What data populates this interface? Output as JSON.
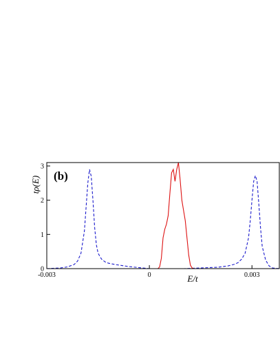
{
  "chart_data": {
    "type": "line",
    "panel_label": "(b)",
    "xlabel": "E/t",
    "ylabel": "tρ(E)",
    "xlim": [
      -0.003,
      0.0038
    ],
    "ylim": [
      0,
      3.1
    ],
    "x_ticks": [
      {
        "value": -0.003,
        "label": "-0.003"
      },
      {
        "value": 0,
        "label": "0"
      },
      {
        "value": 0.003,
        "label": "0.003"
      }
    ],
    "y_ticks": [
      {
        "value": 0,
        "label": "0"
      },
      {
        "value": 1,
        "label": "1"
      },
      {
        "value": 2,
        "label": "2"
      },
      {
        "value": 3,
        "label": "3"
      }
    ],
    "grid": false,
    "legend": "none",
    "series": [
      {
        "style": "dashed",
        "color": "#1a1acc",
        "points": [
          [
            -0.003,
            0.0
          ],
          [
            -0.0026,
            0.02
          ],
          [
            -0.0024,
            0.05
          ],
          [
            -0.0022,
            0.12
          ],
          [
            -0.0021,
            0.22
          ],
          [
            -0.002,
            0.45
          ],
          [
            -0.0019,
            1.1
          ],
          [
            -0.00185,
            1.8
          ],
          [
            -0.0018,
            2.5
          ],
          [
            -0.00175,
            2.9
          ],
          [
            -0.0017,
            2.7
          ],
          [
            -0.00165,
            2.0
          ],
          [
            -0.0016,
            1.2
          ],
          [
            -0.00155,
            0.7
          ],
          [
            -0.0015,
            0.45
          ],
          [
            -0.0014,
            0.28
          ],
          [
            -0.0013,
            0.2
          ],
          [
            -0.0012,
            0.16
          ],
          [
            -0.001,
            0.12
          ],
          [
            -0.0008,
            0.09
          ],
          [
            -0.0006,
            0.06
          ],
          [
            -0.0004,
            0.04
          ],
          [
            -0.0002,
            0.02
          ],
          [
            0.0,
            0.0
          ],
          [
            0.001,
            0.0
          ],
          [
            0.0015,
            0.02
          ],
          [
            0.002,
            0.04
          ],
          [
            0.0023,
            0.08
          ],
          [
            0.0025,
            0.13
          ],
          [
            0.0026,
            0.18
          ],
          [
            0.0027,
            0.28
          ],
          [
            0.0028,
            0.45
          ],
          [
            0.0029,
            0.9
          ],
          [
            0.00295,
            1.4
          ],
          [
            0.003,
            2.0
          ],
          [
            0.00305,
            2.55
          ],
          [
            0.0031,
            2.72
          ],
          [
            0.00315,
            2.55
          ],
          [
            0.0032,
            1.9
          ],
          [
            0.00325,
            1.2
          ],
          [
            0.0033,
            0.65
          ],
          [
            0.0034,
            0.25
          ],
          [
            0.0035,
            0.08
          ],
          [
            0.0036,
            0.02
          ],
          [
            0.0038,
            0.0
          ]
        ]
      },
      {
        "style": "solid",
        "color": "#dd1111",
        "points": [
          [
            -0.003,
            0.0
          ],
          [
            0.0,
            0.0
          ],
          [
            0.00025,
            0.0
          ],
          [
            0.0003,
            0.05
          ],
          [
            0.00035,
            0.3
          ],
          [
            0.0004,
            0.9
          ],
          [
            0.00045,
            1.15
          ],
          [
            0.0005,
            1.3
          ],
          [
            0.00055,
            1.55
          ],
          [
            0.0006,
            2.2
          ],
          [
            0.00065,
            2.8
          ],
          [
            0.0007,
            2.9
          ],
          [
            0.00075,
            2.55
          ],
          [
            0.0008,
            2.9
          ],
          [
            0.00085,
            3.1
          ],
          [
            0.0009,
            2.6
          ],
          [
            0.00095,
            2.0
          ],
          [
            0.001,
            1.7
          ],
          [
            0.00105,
            1.4
          ],
          [
            0.0011,
            0.9
          ],
          [
            0.00115,
            0.4
          ],
          [
            0.0012,
            0.1
          ],
          [
            0.00125,
            0.02
          ],
          [
            0.0013,
            0.0
          ],
          [
            0.0038,
            0.0
          ]
        ]
      }
    ]
  }
}
